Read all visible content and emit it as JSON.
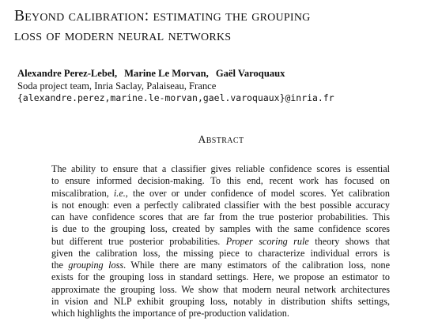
{
  "paper": {
    "title_line1": "Beyond calibration: estimating the grouping",
    "title_line2": "loss of modern neural networks",
    "authors": [
      "Alexandre Perez-Lebel,",
      "Marine Le Morvan,",
      "Gaël Varoquaux"
    ],
    "affiliation": "Soda project team, Inria Saclay, Palaiseau, France",
    "email": "{alexandre.perez,marine.le-morvan,gael.varoquaux}@inria.fr",
    "abstract_heading": "Abstract",
    "abstract_lines": [
      "The ability to ensure that a classifier gives reliable confidence scores is essential",
      "to ensure informed decision-making. To this end, recent work has focused on",
      "miscalibration, i.e., the over or under confidence of model scores. Yet calibration",
      "is not enough: even a perfectly calibrated classifier with the best possible accuracy",
      "can have confidence scores that are far from the true posterior probabilities. This",
      "is due to the grouping loss, created by samples with the same confidence scores",
      "but different true posterior probabilities. Proper scoring rule theory shows that",
      "given the calibration loss, the missing piece to characterize individual errors is",
      "the grouping loss. While there are many estimators of the calibration loss, none",
      "exists for the grouping loss in standard settings. Here, we propose an estimator to",
      "approximate the grouping loss. We show that modern neural network architectures",
      "in vision and NLP exhibit grouping loss, notably in distribution shifts settings,",
      "which highlights the importance of pre-production validation."
    ]
  }
}
